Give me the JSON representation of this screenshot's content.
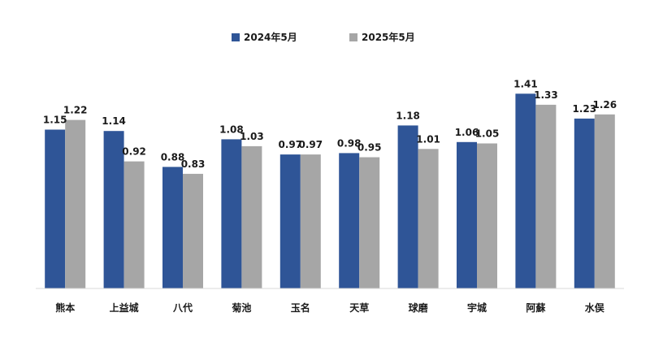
{
  "chart_data": {
    "type": "bar",
    "categories": [
      "熊本",
      "上益城",
      "八代",
      "菊池",
      "玉名",
      "天草",
      "球磨",
      "宇城",
      "阿蘇",
      "水俣"
    ],
    "series": [
      {
        "name": "2024年5月",
        "color": "#2f5597",
        "values": [
          1.15,
          1.14,
          0.88,
          1.08,
          0.97,
          0.98,
          1.18,
          1.06,
          1.41,
          1.23
        ],
        "labels": [
          "1.15",
          "1.14",
          "0.88",
          "1.08",
          "0.97",
          "0.98",
          "1.18",
          "1.06",
          "1.41",
          "1.23"
        ]
      },
      {
        "name": "2025年5月",
        "color": "#a6a6a6",
        "values": [
          1.22,
          0.92,
          0.83,
          1.03,
          0.97,
          0.95,
          1.01,
          1.05,
          1.33,
          1.26
        ],
        "labels": [
          "1.22",
          "0.92",
          "0.83",
          "1.03",
          "0.97",
          "0.95",
          "1.01",
          "1.05",
          "1.33",
          "1.26"
        ]
      }
    ],
    "ylim": [
      0,
      1.5
    ],
    "legend_position": "top-center",
    "grid": false,
    "axis_color": "#d9d9d9"
  }
}
